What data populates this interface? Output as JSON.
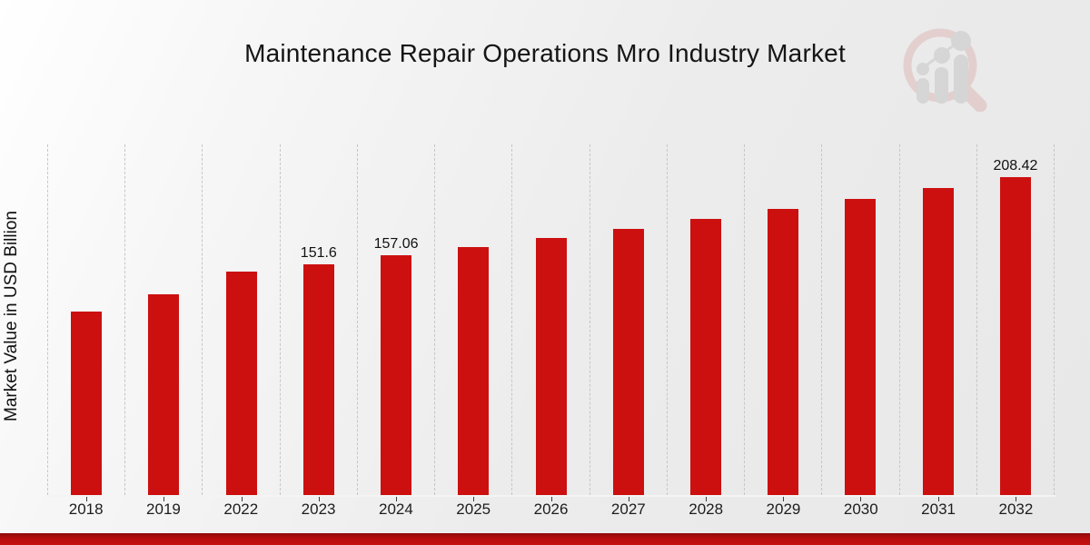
{
  "title": "Maintenance Repair Operations Mro Industry Market",
  "y_axis_label": "Market Value in USD Billion",
  "watermark_icon": "magnifier-growth-chart-logo",
  "colors": {
    "bar": "#cc1010",
    "accent_band": "#c00e0e",
    "gridline": "#c6c6c6",
    "text": "#1a1a1a"
  },
  "chart_data": {
    "type": "bar",
    "title": "Maintenance Repair Operations Mro Industry Market",
    "xlabel": "",
    "ylabel": "Market Value in USD Billion",
    "categories": [
      "2018",
      "2019",
      "2022",
      "2023",
      "2024",
      "2025",
      "2026",
      "2027",
      "2028",
      "2029",
      "2030",
      "2031",
      "2032"
    ],
    "values": [
      120.3,
      131.6,
      146.5,
      151.6,
      157.06,
      162.7,
      168.6,
      174.7,
      181.0,
      187.5,
      194.3,
      201.3,
      208.42
    ],
    "annotations": {
      "2023": "151.6",
      "2024": "157.06",
      "2032": "208.42"
    },
    "ylim": [
      0,
      230
    ],
    "grid": "vertical-dashed",
    "legend": "none",
    "bar_color": "#cc1010"
  }
}
